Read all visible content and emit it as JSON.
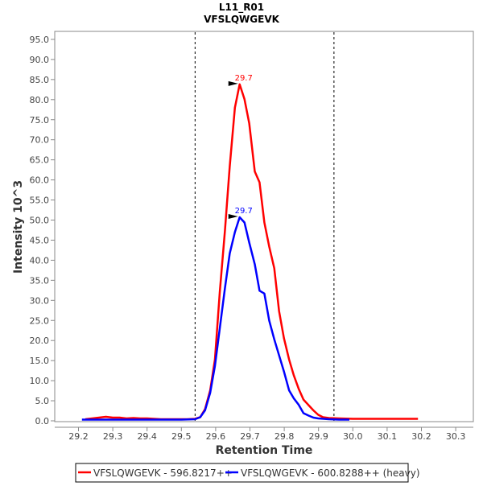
{
  "chart_data": {
    "type": "line",
    "title": "L11_R01",
    "subtitle": "VFSLQWGEVK",
    "xlabel": "Retention Time",
    "ylabel": "Intensity 10^3",
    "xlim": [
      29.13,
      30.36
    ],
    "ylim": [
      0,
      97.5
    ],
    "xticks": [
      "29.2",
      "29.3",
      "29.4",
      "29.5",
      "29.6",
      "29.7",
      "29.8",
      "29.9",
      "30.0",
      "30.1",
      "30.2",
      "30.3"
    ],
    "yticks": [
      "0.0",
      "5.0",
      "10.0",
      "15.0",
      "20.0",
      "25.0",
      "30.0",
      "35.0",
      "40.0",
      "45.0",
      "50.0",
      "55.0",
      "60.0",
      "65.0",
      "70.0",
      "75.0",
      "80.0",
      "85.0",
      "90.0",
      "95.0"
    ],
    "grid": false,
    "legend_position": "bottom",
    "integration_boundaries": [
      29.54,
      29.945
    ],
    "series": [
      {
        "name": "VFSLQWGEVK - 596.8217++",
        "color": "#ff0000",
        "peak_label": "29.7",
        "peak_rt": 29.67,
        "peak_value": 83.8,
        "x": [
          29.22,
          29.24,
          29.26,
          29.28,
          29.3,
          29.32,
          29.34,
          29.36,
          29.38,
          29.4,
          29.44,
          29.48,
          29.516,
          29.54,
          29.555,
          29.569,
          29.584,
          29.598,
          29.612,
          29.627,
          29.641,
          29.656,
          29.67,
          29.684,
          29.698,
          29.714,
          29.728,
          29.742,
          29.756,
          29.771,
          29.785,
          29.799,
          29.814,
          29.828,
          29.842,
          29.856,
          29.871,
          29.885,
          29.899,
          29.913,
          29.93,
          29.96,
          30.0,
          30.05,
          30.1,
          30.15,
          30.19
        ],
        "y": [
          0.4,
          0.6,
          0.8,
          1.0,
          0.8,
          0.8,
          0.6,
          0.7,
          0.6,
          0.6,
          0.4,
          0.4,
          0.4,
          0.5,
          0.9,
          2.9,
          7.6,
          15.3,
          32,
          47.3,
          63.4,
          78,
          83.8,
          80.1,
          74.1,
          62.1,
          59.4,
          49.4,
          43.4,
          38,
          27.3,
          20.6,
          15.3,
          11.3,
          8,
          5.3,
          3.9,
          2.6,
          1.5,
          0.9,
          0.7,
          0.6,
          0.5,
          0.5,
          0.5,
          0.5,
          0.5
        ]
      },
      {
        "name": "VFSLQWGEVK - 600.8288++ (heavy)",
        "color": "#0000ff",
        "peak_label": "29.7",
        "peak_rt": 29.67,
        "peak_value": 50.7,
        "x": [
          29.21,
          29.25,
          29.3,
          29.35,
          29.4,
          29.45,
          29.5,
          29.54,
          29.555,
          29.569,
          29.584,
          29.598,
          29.612,
          29.627,
          29.641,
          29.656,
          29.67,
          29.684,
          29.698,
          29.714,
          29.728,
          29.742,
          29.756,
          29.771,
          29.785,
          29.799,
          29.814,
          29.828,
          29.842,
          29.856,
          29.871,
          29.885,
          29.899,
          29.93,
          29.96,
          29.99
        ],
        "y": [
          0.3,
          0.3,
          0.3,
          0.3,
          0.3,
          0.3,
          0.3,
          0.4,
          0.9,
          2.6,
          7,
          13.7,
          23,
          33,
          41.7,
          47,
          50.7,
          49.4,
          44.4,
          39,
          32.4,
          31.7,
          25,
          20.3,
          16.3,
          12.3,
          7.6,
          5.6,
          4,
          1.9,
          1.3,
          0.8,
          0.6,
          0.4,
          0.3,
          0.3
        ]
      }
    ]
  }
}
